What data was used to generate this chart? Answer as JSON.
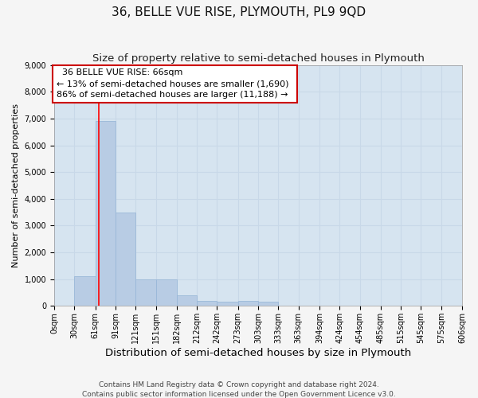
{
  "title": "36, BELLE VUE RISE, PLYMOUTH, PL9 9QD",
  "subtitle": "Size of property relative to semi-detached houses in Plymouth",
  "xlabel": "Distribution of semi-detached houses by size in Plymouth",
  "ylabel": "Number of semi-detached properties",
  "annotation_line1": "36 BELLE VUE RISE: 66sqm",
  "annotation_line2": "← 13% of semi-detached houses are smaller (1,690)",
  "annotation_line3": "86% of semi-detached houses are larger (11,188) →",
  "footer_line1": "Contains HM Land Registry data © Crown copyright and database right 2024.",
  "footer_line2": "Contains public sector information licensed under the Open Government Licence v3.0.",
  "bar_edges": [
    0,
    30,
    61,
    91,
    121,
    151,
    182,
    212,
    242,
    273,
    303,
    333,
    363,
    394,
    424,
    454,
    485,
    515,
    545,
    575,
    606
  ],
  "bar_heights": [
    0,
    1100,
    6900,
    3500,
    1000,
    1000,
    400,
    200,
    150,
    200,
    150,
    0,
    0,
    0,
    0,
    0,
    0,
    0,
    0,
    0
  ],
  "bar_color": "#b8cce4",
  "bar_edge_color": "#9ab8d8",
  "red_line_x": 66,
  "ylim": [
    0,
    9000
  ],
  "yticks": [
    0,
    1000,
    2000,
    3000,
    4000,
    5000,
    6000,
    7000,
    8000,
    9000
  ],
  "xtick_labels": [
    "0sqm",
    "30sqm",
    "61sqm",
    "91sqm",
    "121sqm",
    "151sqm",
    "182sqm",
    "212sqm",
    "242sqm",
    "273sqm",
    "303sqm",
    "333sqm",
    "363sqm",
    "394sqm",
    "424sqm",
    "454sqm",
    "485sqm",
    "515sqm",
    "545sqm",
    "575sqm",
    "606sqm"
  ],
  "grid_color": "#c8d8e8",
  "bg_color": "#d6e4f0",
  "annotation_box_color": "#ffffff",
  "annotation_box_edge": "#cc0000",
  "title_fontsize": 11,
  "subtitle_fontsize": 9.5,
  "xlabel_fontsize": 9.5,
  "ylabel_fontsize": 8,
  "annotation_fontsize": 8,
  "tick_fontsize": 7,
  "footer_fontsize": 6.5
}
